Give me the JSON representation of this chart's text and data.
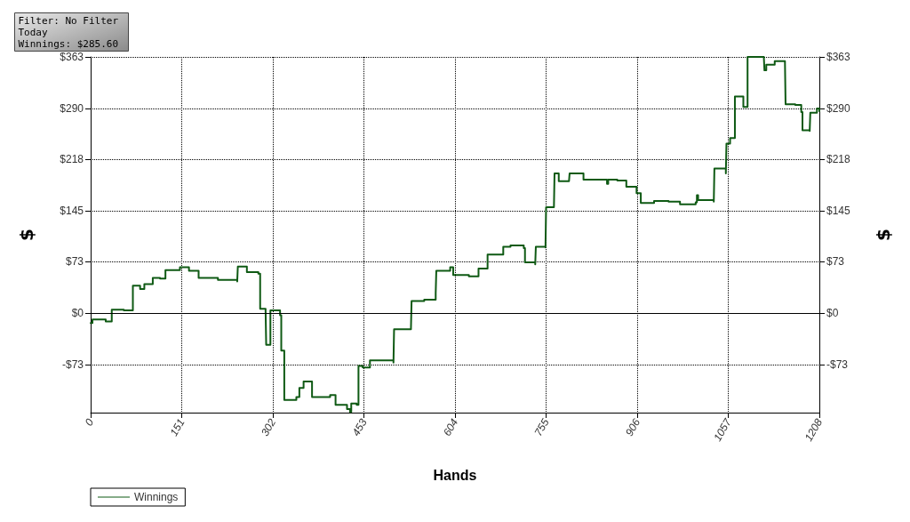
{
  "chart_data": {
    "type": "step",
    "xlabel": "Hands",
    "ylabel": "$",
    "y2label": "$",
    "annotations": [
      "Filter: No Filter",
      "Today",
      "Winnings: $285.60"
    ],
    "xlim": [
      0,
      1208
    ],
    "xticks": [
      0,
      151,
      302,
      453,
      604,
      755,
      906,
      1057,
      1208
    ],
    "ylim": [
      -141,
      363
    ],
    "yticks": [
      {
        "value": -73,
        "label": "-$73"
      },
      {
        "value": 0,
        "label": "$0"
      },
      {
        "value": 73,
        "label": "$73"
      },
      {
        "value": 145,
        "label": "$145"
      },
      {
        "value": 218,
        "label": "$218"
      },
      {
        "value": 290,
        "label": "$290"
      },
      {
        "value": 363,
        "label": "$363"
      }
    ],
    "y2lim": [
      -141,
      363
    ],
    "y2ticks": [
      {
        "value": -73,
        "label": "-$73"
      },
      {
        "value": 0,
        "label": "$0"
      },
      {
        "value": 73,
        "label": "$73"
      },
      {
        "value": 145,
        "label": "$145"
      },
      {
        "value": 218,
        "label": "$218"
      },
      {
        "value": 290,
        "label": "$290"
      },
      {
        "value": 363,
        "label": "$363"
      }
    ],
    "ref_lines": [
      {
        "axis": "y",
        "value": 0,
        "color": "#000000",
        "line_style": "solid"
      }
    ],
    "grid": true,
    "legend": "bottom left",
    "marker": "none",
    "line_style": "solid",
    "series": [
      {
        "name": "Winnings",
        "color": "#0f5a14",
        "x": [
          0,
          3,
          25,
          35,
          55,
          70,
          82,
          89,
          103,
          115,
          124,
          148,
          163,
          179,
          211,
          243,
          244,
          259,
          278,
          281,
          290,
          291,
          298,
          314,
          316,
          321,
          341,
          346,
          353,
          367,
          397,
          406,
          425,
          430,
          432,
          441,
          444,
          451,
          463,
          502,
          503,
          531,
          532,
          553,
          572,
          573,
          596,
          601,
          627,
          643,
          658,
          684,
          696,
          718,
          720,
          737,
          738,
          754,
          755,
          768,
          769,
          776,
          793,
          794,
          817,
          856,
          858,
          873,
          888,
          905,
          912,
          934,
          958,
          977,
          1003,
          1005,
          1007,
          1033,
          1034,
          1053,
          1054,
          1060,
          1068,
          1082,
          1089,
          1116,
          1117,
          1120,
          1134,
          1151,
          1152,
          1168,
          1178,
          1180,
          1192,
          1193,
          1204,
          1208
        ],
        "values": [
          -14,
          -9,
          -12,
          5,
          4,
          39,
          34,
          41,
          50,
          49,
          61,
          65,
          60,
          50,
          47,
          45,
          66,
          58,
          56,
          6,
          4,
          -45,
          4,
          -3,
          -53,
          -123,
          -119,
          -106,
          -97,
          -119,
          -116,
          -130,
          -136,
          -140,
          -128,
          -130,
          -75,
          -77,
          -67,
          -70,
          -23,
          -21,
          17,
          19,
          28,
          60,
          65,
          54,
          52,
          63,
          83,
          94,
          96,
          92,
          72,
          69,
          94,
          93,
          150,
          150,
          198,
          187,
          187,
          198,
          189,
          183,
          189,
          188,
          179,
          170,
          156,
          159,
          158,
          154,
          157,
          167,
          160,
          158,
          205,
          198,
          240,
          248,
          307,
          292,
          363,
          362,
          344,
          352,
          357,
          354,
          296,
          295,
          285,
          259,
          258,
          284,
          290,
          286
        ]
      }
    ]
  }
}
